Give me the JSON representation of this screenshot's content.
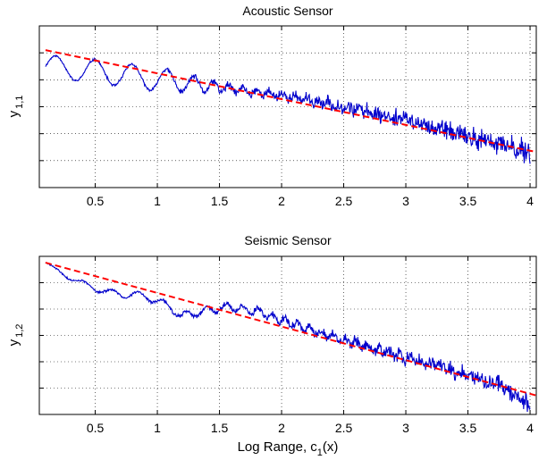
{
  "chart_data": [
    {
      "type": "line",
      "title": "Acoustic Sensor",
      "ylabel_main": "y",
      "ylabel_sub": "1,1",
      "xlabel": "",
      "xlim": [
        0.05,
        4.05
      ],
      "ylim": [
        0,
        1
      ],
      "xticks": [
        "0.5",
        "1",
        "1.5",
        "2",
        "2.5",
        "3",
        "3.5",
        "4"
      ],
      "xtick_values": [
        0.5,
        1,
        1.5,
        2,
        2.5,
        3,
        3.5,
        4
      ],
      "y_gridlines": 5,
      "grid": true,
      "series": [
        {
          "color": "#0000cc",
          "style": "solid",
          "trend": [
            [
              0.1,
              0.75
            ],
            [
              0.5,
              0.72
            ],
            [
              1.0,
              0.67
            ],
            [
              1.5,
              0.62
            ],
            [
              2.0,
              0.57
            ],
            [
              2.5,
              0.5
            ],
            [
              3.0,
              0.42
            ],
            [
              3.5,
              0.31
            ],
            [
              4.0,
              0.22
            ]
          ],
          "noise": [
            [
              0.1,
              0.005
            ],
            [
              1.0,
              0.008
            ],
            [
              1.6,
              0.02
            ],
            [
              2.5,
              0.035
            ],
            [
              3.5,
              0.055
            ],
            [
              4.0,
              0.07
            ]
          ],
          "oscillation": [
            [
              0.1,
              0.07
            ],
            [
              1.0,
              0.075
            ],
            [
              1.6,
              0.02
            ],
            [
              2.0,
              0.015
            ],
            [
              4.0,
              0.01
            ]
          ],
          "period": [
            [
              0.1,
              0.33
            ],
            [
              1.0,
              0.28
            ],
            [
              1.5,
              0.12
            ],
            [
              2.5,
              0.08
            ],
            [
              4.0,
              0.06
            ]
          ]
        },
        {
          "color": "#ff0000",
          "style": "dashed",
          "x": [
            0.1,
            4.05
          ],
          "y": [
            0.85,
            0.22
          ]
        }
      ]
    },
    {
      "type": "line",
      "title": "Seismic Sensor",
      "ylabel_main": "y",
      "ylabel_sub": "1,2",
      "xlabel_main": "Log Range, c",
      "xlabel_sub": "1",
      "xlabel_tail": "(x)",
      "xlim": [
        0.05,
        4.05
      ],
      "ylim": [
        0,
        1
      ],
      "xticks": [
        "0.5",
        "1",
        "1.5",
        "2",
        "2.5",
        "3",
        "3.5",
        "4"
      ],
      "xtick_values": [
        0.5,
        1,
        1.5,
        2,
        2.5,
        3,
        3.5,
        4
      ],
      "y_gridlines": 5,
      "grid": true,
      "series": [
        {
          "color": "#0000cc",
          "style": "solid",
          "trend": [
            [
              0.1,
              0.96
            ],
            [
              0.3,
              0.86
            ],
            [
              0.6,
              0.77
            ],
            [
              0.9,
              0.75
            ],
            [
              1.1,
              0.68
            ],
            [
              1.2,
              0.62
            ],
            [
              1.4,
              0.66
            ],
            [
              1.6,
              0.68
            ],
            [
              1.8,
              0.65
            ],
            [
              2.0,
              0.6
            ],
            [
              2.5,
              0.47
            ],
            [
              3.0,
              0.36
            ],
            [
              3.5,
              0.25
            ],
            [
              3.8,
              0.17
            ],
            [
              4.0,
              0.05
            ]
          ],
          "noise": [
            [
              0.1,
              0.004
            ],
            [
              1.0,
              0.008
            ],
            [
              2.0,
              0.02
            ],
            [
              3.0,
              0.035
            ],
            [
              4.0,
              0.05
            ]
          ],
          "oscillation": [
            [
              0.1,
              0.005
            ],
            [
              0.6,
              0.02
            ],
            [
              1.4,
              0.025
            ],
            [
              2.0,
              0.02
            ],
            [
              4.0,
              0.01
            ]
          ],
          "period": [
            [
              0.1,
              0.25
            ],
            [
              1.0,
              0.2
            ],
            [
              2.0,
              0.1
            ],
            [
              4.0,
              0.07
            ]
          ]
        },
        {
          "color": "#ff0000",
          "style": "dashed",
          "x": [
            0.1,
            4.05
          ],
          "y": [
            0.96,
            0.12
          ]
        }
      ]
    }
  ]
}
